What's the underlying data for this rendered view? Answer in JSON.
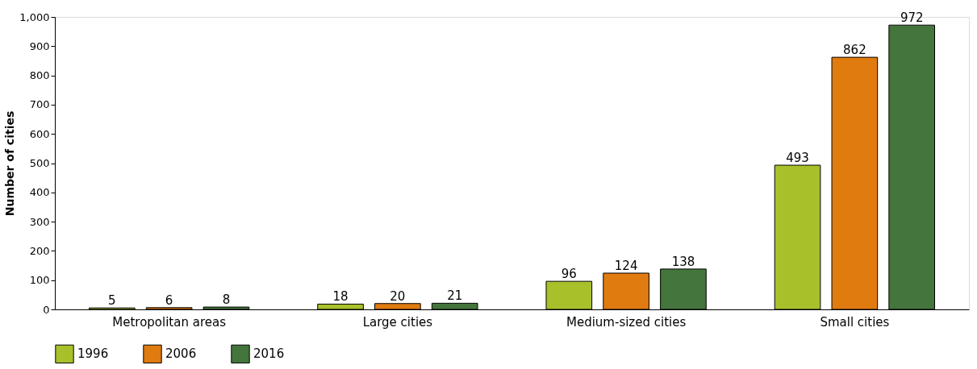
{
  "chart_data": {
    "type": "bar",
    "ylabel": "Number of cities",
    "categories": [
      "Metropolitan areas",
      "Large cities",
      "Medium-sized cities",
      "Small cities"
    ],
    "series": [
      {
        "name": "1996",
        "color": "#a8c12b",
        "values": [
          5,
          18,
          96,
          493
        ]
      },
      {
        "name": "2006",
        "color": "#e07b0f",
        "values": [
          6,
          20,
          124,
          862
        ]
      },
      {
        "name": "2016",
        "color": "#44753c",
        "values": [
          8,
          21,
          138,
          972
        ]
      }
    ],
    "ylim": [
      0,
      1000
    ],
    "yticks": [
      0,
      100,
      200,
      300,
      400,
      500,
      600,
      700,
      800,
      900,
      {
        "value": 1000,
        "label": "1,000"
      }
    ],
    "grid": false,
    "legend": "bottom left",
    "data_labels": true
  }
}
